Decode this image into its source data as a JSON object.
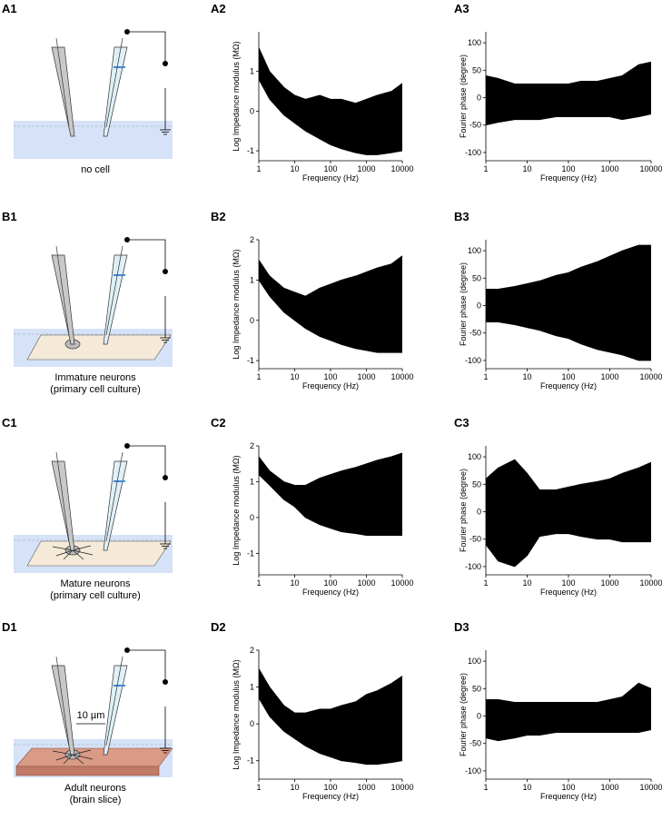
{
  "diagrams": [
    {
      "label": "A1",
      "caption": [
        "no cell"
      ],
      "dish": "none"
    },
    {
      "label": "B1",
      "caption": [
        "Immature neurons",
        "(primary cell culture)"
      ],
      "dish": "culture"
    },
    {
      "label": "C1",
      "caption": [
        "Mature neurons",
        "(primary cell culture)"
      ],
      "dish": "culture"
    },
    {
      "label": "D1",
      "caption": [
        "Adult neurons",
        "(brain slice)"
      ],
      "dish": "slice",
      "annotation": "10 µm"
    }
  ],
  "chart_data": [
    {
      "type": "band",
      "panel_label": "A2",
      "xlabel": "Frequency (Hz)",
      "ylabel": "Log Impedance modulus (MΩ)",
      "log_x": true,
      "x": [
        1,
        2,
        5,
        10,
        20,
        50,
        100,
        200,
        500,
        1000,
        2000,
        5000,
        10000
      ],
      "series": [
        {
          "color": "#000000",
          "values": [
            1.6,
            1.0,
            0.6,
            0.4,
            0.3,
            0.4,
            0.3,
            0.3,
            0.2,
            0.3,
            0.4,
            0.5,
            0.7
          ]
        },
        {
          "color": "#000000",
          "values": [
            0.8,
            0.3,
            -0.1,
            -0.3,
            -0.5,
            -0.7,
            -0.85,
            -0.95,
            -1.05,
            -1.1,
            -1.1,
            -1.05,
            -1.0
          ]
        }
      ],
      "xlim": [
        1,
        10000
      ],
      "xticks": [
        1,
        10,
        100,
        1000,
        10000
      ],
      "ylim": [
        -1.25,
        2
      ],
      "yticks": [
        -1,
        0,
        1
      ]
    },
    {
      "type": "band",
      "panel_label": "A3",
      "xlabel": "Frequency (Hz)",
      "ylabel": "Fourier phase (degree)",
      "log_x": true,
      "x": [
        1,
        2,
        5,
        10,
        20,
        50,
        100,
        200,
        500,
        1000,
        2000,
        5000,
        10000
      ],
      "series": [
        {
          "color": "#000000",
          "values": [
            40,
            35,
            25,
            25,
            25,
            25,
            25,
            30,
            30,
            35,
            40,
            60,
            65
          ]
        },
        {
          "color": "#000000",
          "values": [
            -50,
            -45,
            -40,
            -40,
            -40,
            -35,
            -35,
            -35,
            -35,
            -35,
            -40,
            -35,
            -30
          ]
        }
      ],
      "xlim": [
        1,
        10000
      ],
      "xticks": [
        1,
        10,
        100,
        1000,
        10000
      ],
      "ylim": [
        -115,
        120
      ],
      "yticks": [
        -100,
        -50,
        0,
        50,
        100
      ]
    },
    {
      "type": "band",
      "panel_label": "B2",
      "xlabel": "Frequency (Hz)",
      "ylabel": "Log Impedance modulus (MΩ)",
      "log_x": true,
      "x": [
        1,
        2,
        5,
        10,
        20,
        50,
        100,
        200,
        500,
        1000,
        2000,
        5000,
        10000
      ],
      "series": [
        {
          "color": "#000000",
          "values": [
            1.5,
            1.1,
            0.8,
            0.7,
            0.6,
            0.8,
            0.9,
            1.0,
            1.1,
            1.2,
            1.3,
            1.4,
            1.6
          ]
        },
        {
          "color": "#000000",
          "values": [
            1.0,
            0.6,
            0.2,
            0.0,
            -0.2,
            -0.4,
            -0.5,
            -0.6,
            -0.7,
            -0.75,
            -0.8,
            -0.8,
            -0.8
          ]
        }
      ],
      "xlim": [
        1,
        10000
      ],
      "xticks": [
        1,
        10,
        100,
        1000,
        10000
      ],
      "ylim": [
        -1.2,
        2
      ],
      "yticks": [
        -1,
        0,
        1,
        2
      ]
    },
    {
      "type": "band",
      "panel_label": "B3",
      "xlabel": "Frequency (Hz)",
      "ylabel": "Fourier phase (degree)",
      "log_x": true,
      "x": [
        1,
        2,
        5,
        10,
        20,
        50,
        100,
        200,
        500,
        1000,
        2000,
        5000,
        10000
      ],
      "series": [
        {
          "color": "#000000",
          "values": [
            30,
            30,
            35,
            40,
            45,
            55,
            60,
            70,
            80,
            90,
            100,
            110,
            110
          ]
        },
        {
          "color": "#000000",
          "values": [
            -30,
            -30,
            -35,
            -40,
            -45,
            -55,
            -60,
            -70,
            -80,
            -85,
            -90,
            -100,
            -100
          ]
        }
      ],
      "xlim": [
        1,
        10000
      ],
      "xticks": [
        1,
        10,
        100,
        1000,
        10000
      ],
      "ylim": [
        -115,
        120
      ],
      "yticks": [
        -100,
        -50,
        0,
        50,
        100
      ]
    },
    {
      "type": "band",
      "panel_label": "C2",
      "xlabel": "Frequency (Hz)",
      "ylabel": "Log Impedance modulus (MΩ)",
      "log_x": true,
      "x": [
        1,
        2,
        5,
        10,
        20,
        50,
        100,
        200,
        500,
        1000,
        2000,
        5000,
        10000
      ],
      "series": [
        {
          "color": "#000000",
          "values": [
            1.7,
            1.3,
            1.0,
            0.9,
            0.9,
            1.1,
            1.2,
            1.3,
            1.4,
            1.5,
            1.6,
            1.7,
            1.8
          ]
        },
        {
          "color": "#000000",
          "values": [
            1.2,
            0.9,
            0.5,
            0.3,
            0.0,
            -0.2,
            -0.3,
            -0.4,
            -0.45,
            -0.5,
            -0.5,
            -0.5,
            -0.5
          ]
        }
      ],
      "xlim": [
        1,
        10000
      ],
      "xticks": [
        1,
        10,
        100,
        1000,
        10000
      ],
      "ylim": [
        -1.6,
        2
      ],
      "yticks": [
        -1,
        0,
        1,
        2
      ]
    },
    {
      "type": "band",
      "panel_label": "C3",
      "xlabel": "Frequency (Hz)",
      "ylabel": "Fourier phase (degree)",
      "log_x": true,
      "x": [
        1,
        2,
        5,
        10,
        20,
        50,
        100,
        200,
        500,
        1000,
        2000,
        5000,
        10000
      ],
      "series": [
        {
          "color": "#000000",
          "values": [
            60,
            80,
            95,
            70,
            40,
            40,
            45,
            50,
            55,
            60,
            70,
            80,
            90
          ]
        },
        {
          "color": "#000000",
          "values": [
            -60,
            -90,
            -100,
            -80,
            -45,
            -40,
            -40,
            -45,
            -50,
            -50,
            -55,
            -55,
            -55
          ]
        }
      ],
      "xlim": [
        1,
        10000
      ],
      "xticks": [
        1,
        10,
        100,
        1000,
        10000
      ],
      "ylim": [
        -115,
        120
      ],
      "yticks": [
        -100,
        -50,
        0,
        50,
        100
      ]
    },
    {
      "type": "band",
      "panel_label": "D2",
      "xlabel": "Frequency (Hz)",
      "ylabel": "Log Impedance modulus (MΩ)",
      "log_x": true,
      "x": [
        1,
        2,
        5,
        10,
        20,
        50,
        100,
        200,
        500,
        1000,
        2000,
        5000,
        10000
      ],
      "series": [
        {
          "color": "#000000",
          "values": [
            1.5,
            1.0,
            0.5,
            0.3,
            0.3,
            0.4,
            0.4,
            0.5,
            0.6,
            0.8,
            0.9,
            1.1,
            1.3
          ]
        },
        {
          "color": "#000000",
          "values": [
            0.7,
            0.2,
            -0.2,
            -0.4,
            -0.6,
            -0.8,
            -0.9,
            -1.0,
            -1.05,
            -1.1,
            -1.1,
            -1.05,
            -1.0
          ]
        }
      ],
      "xlim": [
        1,
        10000
      ],
      "xticks": [
        1,
        10,
        100,
        1000,
        10000
      ],
      "ylim": [
        -1.5,
        2
      ],
      "yticks": [
        -1,
        0,
        1,
        2
      ]
    },
    {
      "type": "band",
      "panel_label": "D3",
      "xlabel": "Frequency (Hz)",
      "ylabel": "Fourier phase (degree)",
      "log_x": true,
      "x": [
        1,
        2,
        5,
        10,
        20,
        50,
        100,
        200,
        500,
        1000,
        2000,
        5000,
        10000
      ],
      "series": [
        {
          "color": "#000000",
          "values": [
            30,
            30,
            25,
            25,
            25,
            25,
            25,
            25,
            25,
            30,
            35,
            60,
            50
          ]
        },
        {
          "color": "#000000",
          "values": [
            -40,
            -45,
            -40,
            -35,
            -35,
            -30,
            -30,
            -30,
            -30,
            -30,
            -30,
            -30,
            -25
          ]
        }
      ],
      "xlim": [
        1,
        10000
      ],
      "xticks": [
        1,
        10,
        100,
        1000,
        10000
      ],
      "ylim": [
        -115,
        120
      ],
      "yticks": [
        -100,
        -50,
        0,
        50,
        100
      ]
    }
  ]
}
